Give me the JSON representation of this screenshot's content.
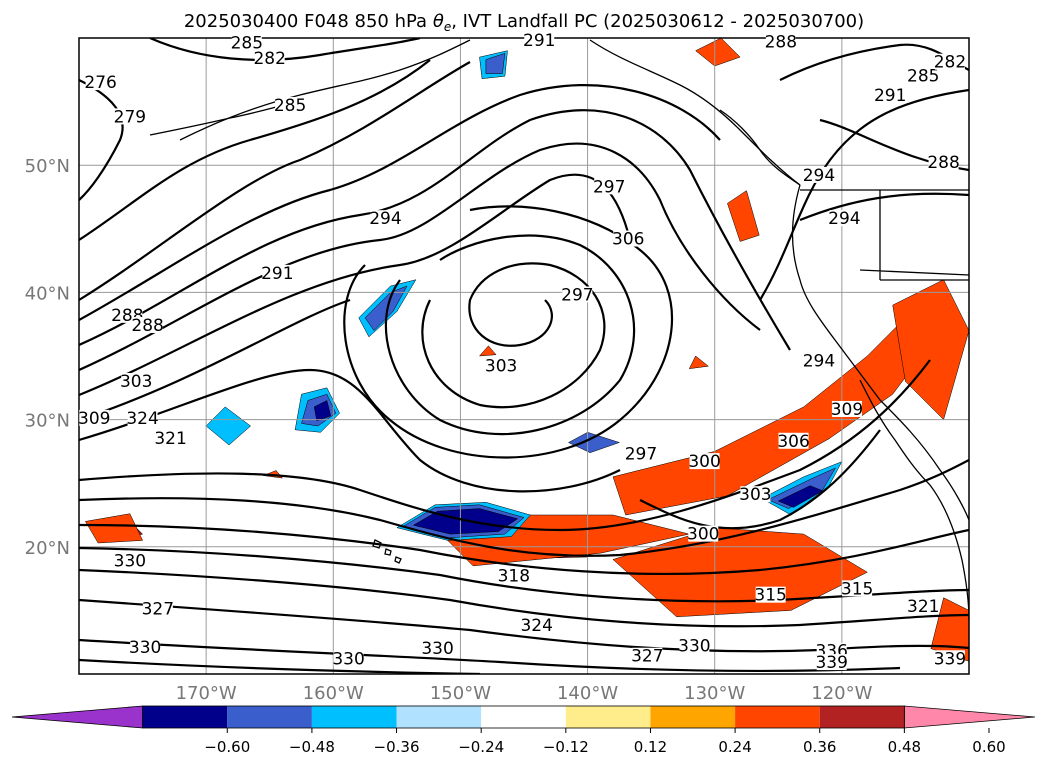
{
  "chart_data": {
    "type": "map-contour",
    "title": "2025030400 F048 850 hPa θe, IVT Landfall PC (2025030612 - 2025030700)",
    "title_prefix": "2025030400 F048 850 hPa ",
    "title_symbol": "θ",
    "title_sub": "e",
    "title_suffix": ", IVT Landfall PC (2025030612 - 2025030700)",
    "x_ticks": [
      "170°W",
      "160°W",
      "150°W",
      "140°W",
      "130°W",
      "120°W"
    ],
    "x_tick_values": [
      -170,
      -160,
      -150,
      -140,
      -130,
      -120
    ],
    "y_ticks": [
      "50°N",
      "40°N",
      "30°N",
      "20°N"
    ],
    "y_tick_values": [
      50,
      40,
      30,
      20
    ],
    "lon_range": [
      -180,
      -110
    ],
    "lat_range": [
      10,
      60
    ],
    "grid": true,
    "colorbar": {
      "orientation": "horizontal",
      "extend": "both",
      "levels": [
        -0.72,
        -0.6,
        -0.48,
        -0.36,
        -0.24,
        -0.12,
        0.12,
        0.24,
        0.36,
        0.48,
        0.6,
        0.72
      ],
      "tick_labels": [
        "−0.60",
        "−0.48",
        "−0.36",
        "−0.24",
        "−0.12",
        "0.12",
        "0.24",
        "0.36",
        "0.48",
        "0.60"
      ],
      "colors": [
        "#9933cc",
        "#00008b",
        "#3a5fcd",
        "#00bfff",
        "#b0e2ff",
        "#ffffff",
        "#ffec8b",
        "#ffa500",
        "#ff4500",
        "#b22222",
        "#ff88aa"
      ]
    },
    "contour_labels": [
      {
        "text": "285",
        "lon": -166.8,
        "lat": 59.4
      },
      {
        "text": "282",
        "lon": -165.0,
        "lat": 58.2
      },
      {
        "text": "276",
        "lon": -178.3,
        "lat": 56.3
      },
      {
        "text": "279",
        "lon": -176.0,
        "lat": 53.6
      },
      {
        "text": "285",
        "lon": -163.4,
        "lat": 54.5
      },
      {
        "text": "294",
        "lon": -155.9,
        "lat": 45.6
      },
      {
        "text": "291",
        "lon": -164.4,
        "lat": 41.3
      },
      {
        "text": "288",
        "lon": -176.2,
        "lat": 38.0
      },
      {
        "text": "288",
        "lon": -174.6,
        "lat": 37.2
      },
      {
        "text": "303",
        "lon": -175.5,
        "lat": 32.8
      },
      {
        "text": "324",
        "lon": -175.0,
        "lat": 29.9
      },
      {
        "text": "309",
        "lon": -178.8,
        "lat": 29.9
      },
      {
        "text": "321",
        "lon": -172.8,
        "lat": 28.3
      },
      {
        "text": "291",
        "lon": -143.8,
        "lat": 59.6
      },
      {
        "text": "297",
        "lon": -138.3,
        "lat": 48.1
      },
      {
        "text": "306",
        "lon": -136.8,
        "lat": 44.0
      },
      {
        "text": "297",
        "lon": -140.8,
        "lat": 39.6
      },
      {
        "text": "303",
        "lon": -146.8,
        "lat": 34.0
      },
      {
        "text": "294",
        "lon": -121.8,
        "lat": 34.4
      },
      {
        "text": "309",
        "lon": -119.6,
        "lat": 30.6
      },
      {
        "text": "306",
        "lon": -123.8,
        "lat": 28.1
      },
      {
        "text": "300",
        "lon": -130.8,
        "lat": 26.5
      },
      {
        "text": "297",
        "lon": -135.8,
        "lat": 27.1
      },
      {
        "text": "303",
        "lon": -126.8,
        "lat": 23.9
      },
      {
        "text": "300",
        "lon": -130.9,
        "lat": 20.8
      },
      {
        "text": "318",
        "lon": -145.8,
        "lat": 17.5
      },
      {
        "text": "324",
        "lon": -144.0,
        "lat": 13.6
      },
      {
        "text": "327",
        "lon": -135.3,
        "lat": 11.2
      },
      {
        "text": "330",
        "lon": -131.6,
        "lat": 12.0
      },
      {
        "text": "330",
        "lon": -151.8,
        "lat": 11.8
      },
      {
        "text": "330",
        "lon": -158.8,
        "lat": 11.0
      },
      {
        "text": "315",
        "lon": -118.8,
        "lat": 16.5
      },
      {
        "text": "315",
        "lon": -125.6,
        "lat": 16.0
      },
      {
        "text": "321",
        "lon": -113.6,
        "lat": 15.1
      },
      {
        "text": "339",
        "lon": -111.5,
        "lat": 11.0
      },
      {
        "text": "336",
        "lon": -120.8,
        "lat": 11.6
      },
      {
        "text": "339",
        "lon": -120.8,
        "lat": 10.7
      },
      {
        "text": "330",
        "lon": -176.0,
        "lat": 18.7
      },
      {
        "text": "327",
        "lon": -173.8,
        "lat": 14.9
      },
      {
        "text": "330",
        "lon": -174.8,
        "lat": 11.9
      },
      {
        "text": "294",
        "lon": -121.8,
        "lat": 49.0
      },
      {
        "text": "294",
        "lon": -119.8,
        "lat": 45.6
      },
      {
        "text": "291",
        "lon": -116.2,
        "lat": 55.3
      },
      {
        "text": "288",
        "lon": -112.0,
        "lat": 50.0
      },
      {
        "text": "285",
        "lon": -113.6,
        "lat": 56.8
      },
      {
        "text": "282",
        "lon": -111.5,
        "lat": 57.9
      },
      {
        "text": "288",
        "lon": -124.8,
        "lat": 59.5
      }
    ],
    "ivt_shading": [
      {
        "level": 0.6,
        "color": "#ff88aa",
        "polys": [
          [
            [
              -135,
              24.5
            ],
            [
              -128,
              26.5
            ],
            [
              -121,
              30
            ],
            [
              -118,
              33
            ],
            [
              -117,
              32
            ],
            [
              -121,
              28.5
            ],
            [
              -128,
              25
            ],
            [
              -134,
              23.5
            ]
          ],
          [
            [
              -148,
              20.5
            ],
            [
              -142,
              21
            ],
            [
              -138,
              21.5
            ],
            [
              -141,
              20
            ],
            [
              -147,
              19.5
            ]
          ]
        ]
      },
      {
        "level": 0.48,
        "color": "#b22222",
        "polys": [
          [
            [
              -136,
              24
            ],
            [
              -128,
              27
            ],
            [
              -121,
              31
            ],
            [
              -117,
              35
            ],
            [
              -116,
              33
            ],
            [
              -120,
              29.5
            ],
            [
              -128,
              24.8
            ],
            [
              -135,
              23
            ]
          ],
          [
            [
              -150,
              20.8
            ],
            [
              -143,
              21.5
            ],
            [
              -137,
              21.8
            ],
            [
              -140,
              19.2
            ],
            [
              -148,
              19
            ]
          ],
          [
            [
              -135,
              18.5
            ],
            [
              -126,
              19.5
            ],
            [
              -120,
              18.5
            ],
            [
              -125,
              16.5
            ],
            [
              -133,
              16.5
            ]
          ],
          [
            [
              -116,
              37
            ],
            [
              -113,
              39
            ],
            [
              -112,
              36
            ],
            [
              -114,
              34
            ]
          ],
          [
            [
              -178,
              21.5
            ],
            [
              -176,
              22
            ],
            [
              -175,
              21
            ],
            [
              -177,
              20.5
            ]
          ]
        ]
      },
      {
        "level": 0.36,
        "color": "#ff4500",
        "polys": [
          [
            [
              -138,
              25.5
            ],
            [
              -130,
              27.5
            ],
            [
              -123,
              31
            ],
            [
              -118,
              35
            ],
            [
              -115,
              38
            ],
            [
              -113,
              36
            ],
            [
              -116,
              32
            ],
            [
              -121,
              28.5
            ],
            [
              -129,
              24
            ],
            [
              -137,
              22.5
            ]
          ],
          [
            [
              -152,
              21.5
            ],
            [
              -145,
              22.5
            ],
            [
              -138,
              22.5
            ],
            [
              -132,
              21
            ],
            [
              -139,
              19.5
            ],
            [
              -149,
              18.5
            ]
          ],
          [
            [
              -138,
              19
            ],
            [
              -130,
              21.5
            ],
            [
              -123,
              21
            ],
            [
              -118,
              18
            ],
            [
              -124,
              15
            ],
            [
              -133,
              14.5
            ]
          ],
          [
            [
              -116,
              39
            ],
            [
              -112,
              41
            ],
            [
              -110,
              37
            ],
            [
              -112,
              30
            ],
            [
              -115,
              33
            ]
          ],
          [
            [
              -112,
              16
            ],
            [
              -110,
              15
            ],
            [
              -110,
              11
            ],
            [
              -113,
              12
            ]
          ],
          [
            [
              -153,
              21
            ],
            [
              -151,
              21.8
            ],
            [
              -150,
              20.6
            ]
          ],
          [
            [
              -179.5,
              22
            ],
            [
              -176,
              22.6
            ],
            [
              -175,
              20.5
            ],
            [
              -178.5,
              20.3
            ]
          ],
          [
            [
              -129,
              47
            ],
            [
              -127.5,
              48
            ],
            [
              -126.5,
              44.5
            ],
            [
              -128,
              44
            ]
          ],
          [
            [
              -132,
              34
            ],
            [
              -131.5,
              35
            ],
            [
              -130.5,
              34.2
            ]
          ],
          [
            [
              -148.5,
              35
            ],
            [
              -147.8,
              35.8
            ],
            [
              -147.2,
              35.1
            ]
          ],
          [
            [
              -131.5,
              59
            ],
            [
              -129.5,
              60
            ],
            [
              -128,
              58.5
            ],
            [
              -130,
              57.8
            ]
          ],
          [
            [
              -165.5,
              25.6
            ],
            [
              -164.5,
              26
            ],
            [
              -164,
              25.4
            ]
          ]
        ]
      },
      {
        "level": -0.24,
        "color": "#00bfff",
        "polys": [
          [
            [
              -144.5,
              22.5
            ],
            [
              -148,
              23.5
            ],
            [
              -152,
              23.3
            ],
            [
              -155,
              21.5
            ],
            [
              -151,
              20.5
            ],
            [
              -146,
              20.8
            ]
          ],
          [
            [
              -126.3,
              23.8
            ],
            [
              -123,
              25.5
            ],
            [
              -120,
              26.7
            ],
            [
              -121,
              24.8
            ],
            [
              -124,
              22.5
            ]
          ],
          [
            [
              -162.5,
              32
            ],
            [
              -160.5,
              32.5
            ],
            [
              -159.5,
              30.5
            ],
            [
              -161,
              29
            ],
            [
              -163,
              29.2
            ]
          ],
          [
            [
              -158,
              38
            ],
            [
              -155.5,
              40.5
            ],
            [
              -153.5,
              41
            ],
            [
              -155,
              38.5
            ],
            [
              -157.2,
              36.5
            ]
          ],
          [
            [
              -148.5,
              58.5
            ],
            [
              -146.3,
              59
            ],
            [
              -146.5,
              57
            ],
            [
              -148.3,
              56.8
            ]
          ],
          [
            [
              -166.5,
              29.5
            ],
            [
              -168.5,
              31
            ],
            [
              -170,
              29.5
            ],
            [
              -168.2,
              28
            ]
          ]
        ]
      },
      {
        "level": -0.36,
        "color": "#3a5fcd",
        "polys": [
          [
            [
              -145,
              22.3
            ],
            [
              -148.5,
              23.3
            ],
            [
              -152,
              23.1
            ],
            [
              -154.5,
              21.6
            ],
            [
              -151,
              20.7
            ],
            [
              -146.5,
              21
            ]
          ],
          [
            [
              -125.8,
              23.7
            ],
            [
              -122.5,
              25.3
            ],
            [
              -120.5,
              26.2
            ],
            [
              -121.5,
              24.5
            ],
            [
              -124.2,
              23
            ]
          ],
          [
            [
              -162,
              31.5
            ],
            [
              -160.5,
              32
            ],
            [
              -159.8,
              30.5
            ],
            [
              -161.2,
              29.5
            ],
            [
              -162.5,
              29.7
            ]
          ],
          [
            [
              -157.5,
              38
            ],
            [
              -155.5,
              40
            ],
            [
              -154.2,
              40.5
            ],
            [
              -155.3,
              38.5
            ],
            [
              -156.8,
              37
            ]
          ],
          [
            [
              -148,
              58.3
            ],
            [
              -146.5,
              58.8
            ],
            [
              -146.7,
              57.2
            ],
            [
              -148,
              57.2
            ]
          ],
          [
            [
              -137.5,
              28.2
            ],
            [
              -140,
              29
            ],
            [
              -141.5,
              28.2
            ],
            [
              -139.8,
              27.4
            ]
          ]
        ]
      },
      {
        "level": -0.48,
        "color": "#00008b",
        "polys": [
          [
            [
              -145.5,
              22.2
            ],
            [
              -148.5,
              23
            ],
            [
              -151.8,
              22.8
            ],
            [
              -153.7,
              21.7
            ],
            [
              -150.8,
              21
            ],
            [
              -147,
              21.2
            ]
          ],
          [
            [
              -125,
              23.6
            ],
            [
              -122.5,
              24.8
            ],
            [
              -121.5,
              24.4
            ],
            [
              -123.8,
              23.1
            ]
          ],
          [
            [
              -161.5,
              31
            ],
            [
              -160.5,
              31.5
            ],
            [
              -160.2,
              30.3
            ],
            [
              -161.3,
              29.9
            ]
          ]
        ]
      }
    ]
  }
}
